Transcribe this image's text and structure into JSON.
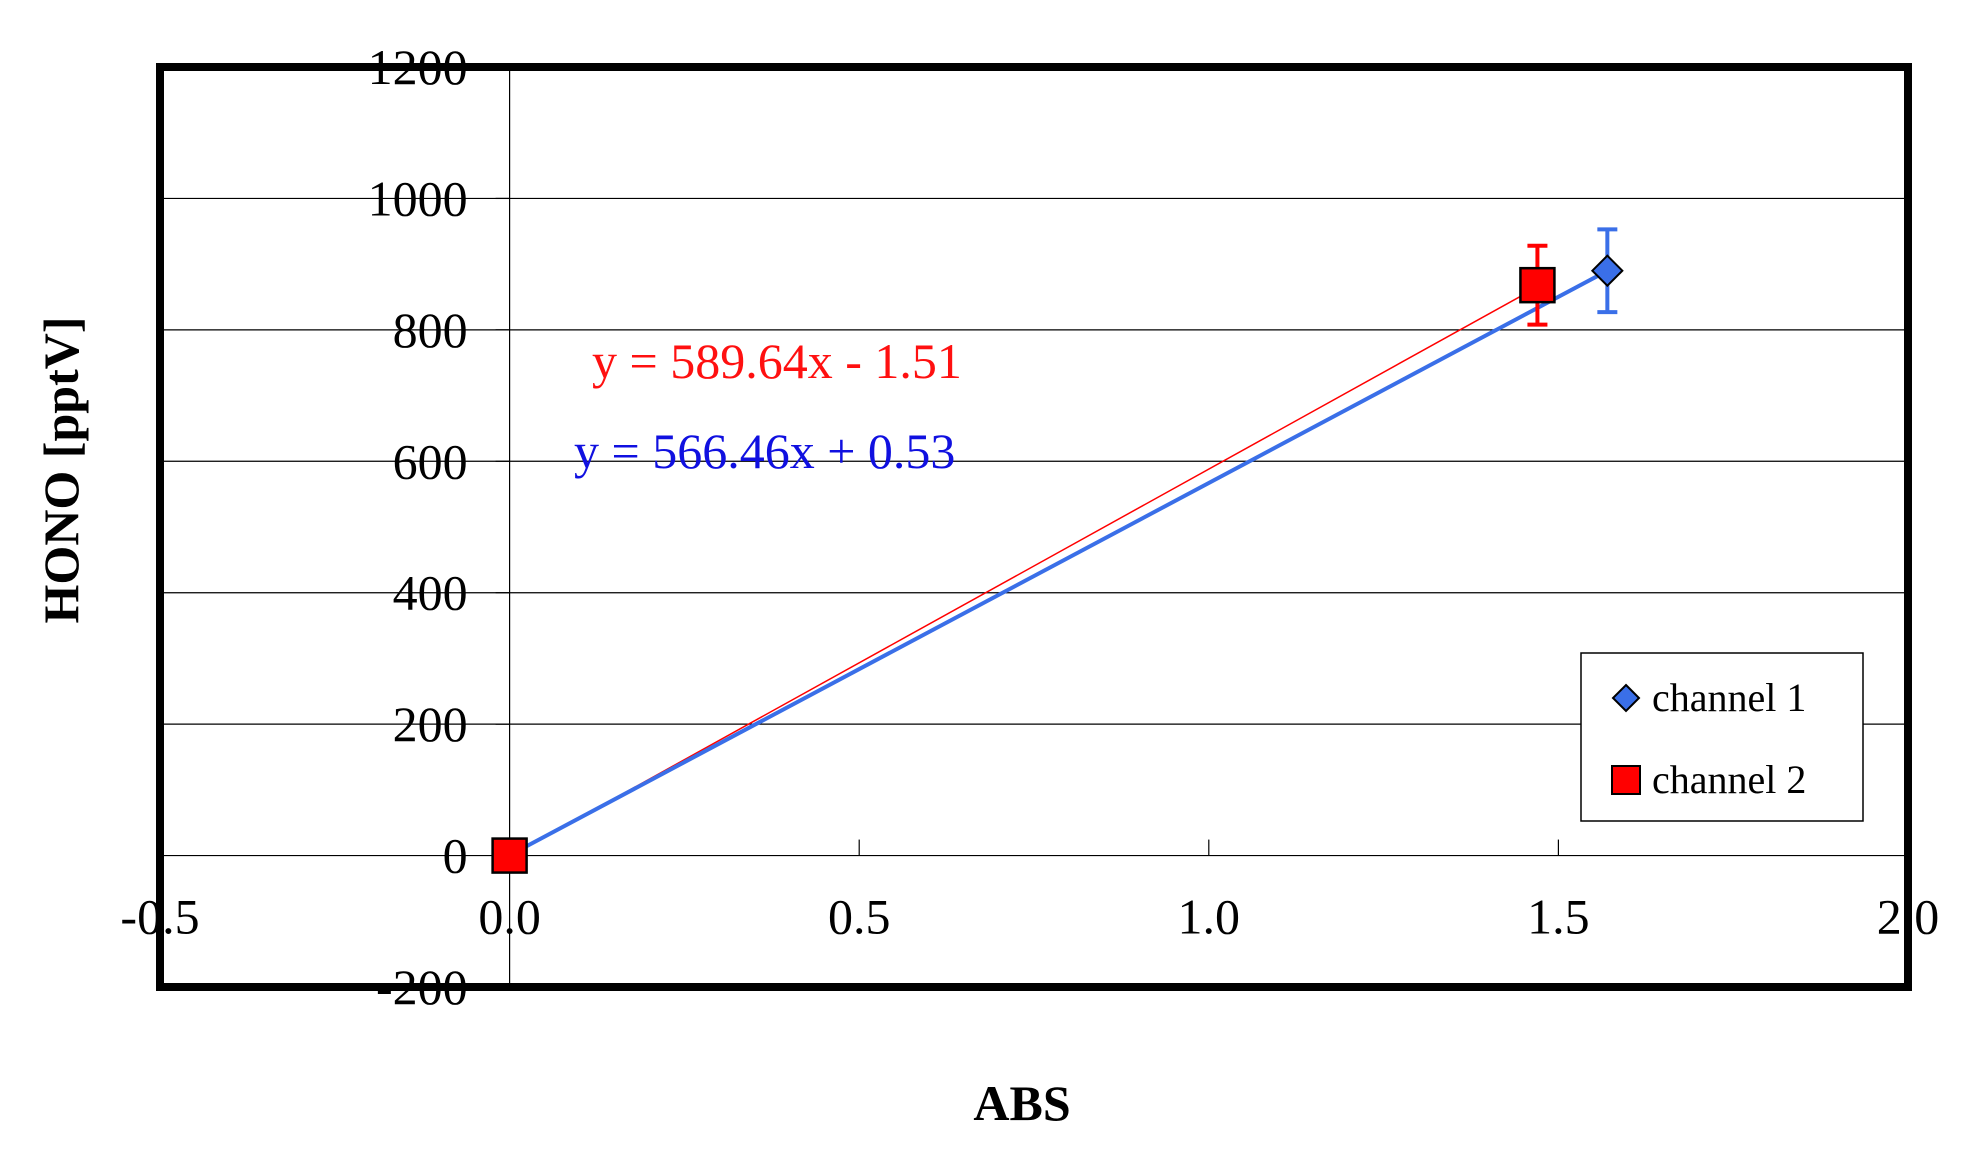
{
  "chart_data": {
    "type": "scatter",
    "xlabel": "ABS",
    "ylabel": "HONO [pptV]",
    "xlim": [
      -0.5,
      2.0
    ],
    "ylim": [
      -200,
      1200
    ],
    "xticks": [
      "-0.5",
      "0.0",
      "0.5",
      "1.0",
      "1.5",
      "2.0"
    ],
    "yticks": [
      "-200",
      "0",
      "200",
      "400",
      "600",
      "800",
      "1000",
      "1200"
    ],
    "xtick_values": [
      -0.5,
      0.0,
      0.5,
      1.0,
      1.5,
      2.0
    ],
    "ytick_values": [
      -200,
      0,
      200,
      400,
      600,
      800,
      1000,
      1200
    ],
    "grid": {
      "horizontal": true,
      "vertical": false
    },
    "legend_position": "bottom-right",
    "series": [
      {
        "name": "channel 1",
        "marker": "diamond",
        "color": "#3A6FE8",
        "points": [
          {
            "x": 0.0,
            "y": 0,
            "yerr": 0
          },
          {
            "x": 1.57,
            "y": 890,
            "yerr": 63
          }
        ],
        "trendline": {
          "slope": 566.46,
          "intercept": 0.53,
          "label": "y = 566.46x + 0.53",
          "label_color": "#1010E0"
        }
      },
      {
        "name": "channel 2",
        "marker": "square",
        "color": "#FF0000",
        "points": [
          {
            "x": 0.0,
            "y": 0,
            "yerr": 0
          },
          {
            "x": 1.47,
            "y": 868,
            "yerr": 60
          }
        ],
        "trendline": {
          "slope": 589.64,
          "intercept": -1.51,
          "label": "y = 589.64x - 1.51",
          "label_color": "#FF1010"
        }
      }
    ]
  }
}
